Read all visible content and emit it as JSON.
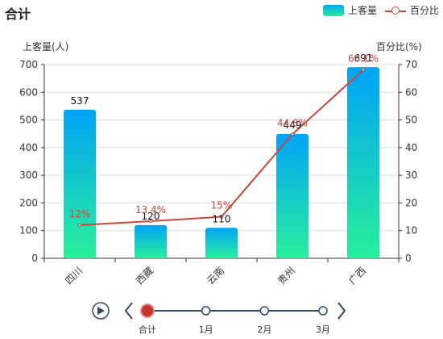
{
  "title": "合计",
  "legend": {
    "bar_label": "上客量",
    "line_label": "百分比"
  },
  "colors": {
    "bar_top": "#00a3f7",
    "bar_bottom": "#28f09a",
    "line": "#c9463b",
    "axis": "#333333",
    "grid": "#dddddd",
    "timeline": "#34495e",
    "timeline_active": "#c23531"
  },
  "chart_data": {
    "type": "bar",
    "categories": [
      "四川",
      "西藏",
      "云南",
      "贵州",
      "广西"
    ],
    "series": [
      {
        "name": "上客量",
        "type": "bar",
        "axis": "left",
        "values": [
          537,
          120,
          110,
          449,
          691
        ]
      },
      {
        "name": "百分比",
        "type": "line",
        "axis": "right",
        "values": [
          12,
          13.4,
          15,
          44.8,
          68.1
        ]
      }
    ],
    "bar_labels": [
      "537",
      "120",
      "110",
      "449",
      "691"
    ],
    "line_labels": [
      "12%",
      "13.4%",
      "15%",
      "44.8%",
      "68.1%"
    ],
    "ylabel_left": "上客量(人)",
    "ylabel_right": "百分比(%)",
    "ylim_left": [
      0,
      700
    ],
    "ylim_right": [
      0,
      70
    ],
    "yticks_left": [
      "0",
      "100",
      "200",
      "300",
      "400",
      "500",
      "600",
      "700"
    ],
    "yticks_right": [
      "0",
      "10",
      "20",
      "30",
      "40",
      "50",
      "60",
      "70"
    ],
    "grid": true
  },
  "timeline": {
    "items": [
      "合计",
      "1月",
      "2月",
      "3月"
    ],
    "active_index": 0,
    "play_icon": "play-icon",
    "prev_icon": "chevron-left-icon",
    "next_icon": "chevron-right-icon"
  }
}
